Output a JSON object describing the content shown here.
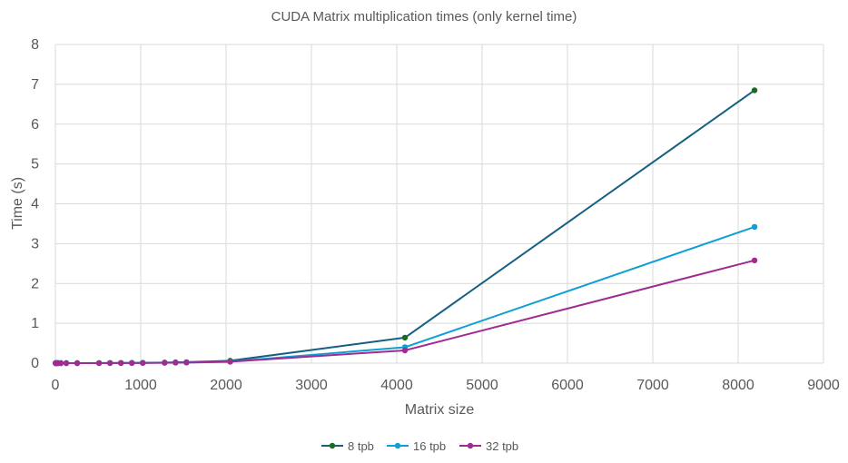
{
  "chart_data": {
    "type": "line",
    "title": "CUDA Matrix multiplication times (only kernel time)",
    "xlabel": "Matrix size",
    "ylabel": "Time (s)",
    "xlim": [
      0,
      9000
    ],
    "ylim": [
      0,
      8
    ],
    "xticks": [
      0,
      1000,
      2000,
      3000,
      4000,
      5000,
      6000,
      7000,
      8000,
      9000
    ],
    "yticks": [
      0,
      1,
      2,
      3,
      4,
      5,
      6,
      7,
      8
    ],
    "grid": true,
    "legend_position": "bottom",
    "series": [
      {
        "name": "8 tpb",
        "color": "#156082",
        "marker_color": "#196b24",
        "x": [
          2,
          4,
          8,
          16,
          32,
          64,
          128,
          256,
          512,
          640,
          768,
          896,
          1024,
          1280,
          1408,
          1536,
          2048,
          4096,
          8192
        ],
        "y": [
          0,
          0,
          0,
          0,
          0,
          0,
          0,
          0,
          0.002,
          0.003,
          0.005,
          0.006,
          0.009,
          0.015,
          0.02,
          0.025,
          0.06,
          0.64,
          6.85
        ]
      },
      {
        "name": "16 tpb",
        "color": "#0f9ed5",
        "marker_color": "#0f9ed5",
        "x": [
          2,
          4,
          8,
          16,
          32,
          64,
          128,
          256,
          512,
          640,
          768,
          896,
          1024,
          1280,
          1408,
          1536,
          2048,
          4096,
          8192
        ],
        "y": [
          0,
          0,
          0,
          0,
          0,
          0,
          0,
          0,
          0.001,
          0.002,
          0.003,
          0.004,
          0.006,
          0.01,
          0.013,
          0.017,
          0.04,
          0.4,
          3.42
        ]
      },
      {
        "name": "32 tpb",
        "color": "#a02b93",
        "marker_color": "#a02b93",
        "x": [
          2,
          4,
          8,
          16,
          32,
          64,
          128,
          256,
          512,
          640,
          768,
          896,
          1024,
          1280,
          1408,
          1536,
          2048,
          4096,
          8192
        ],
        "y": [
          0,
          0,
          0,
          0,
          0,
          0,
          0,
          0,
          0.001,
          0.002,
          0.003,
          0.004,
          0.005,
          0.009,
          0.012,
          0.015,
          0.035,
          0.32,
          2.58
        ]
      }
    ]
  }
}
